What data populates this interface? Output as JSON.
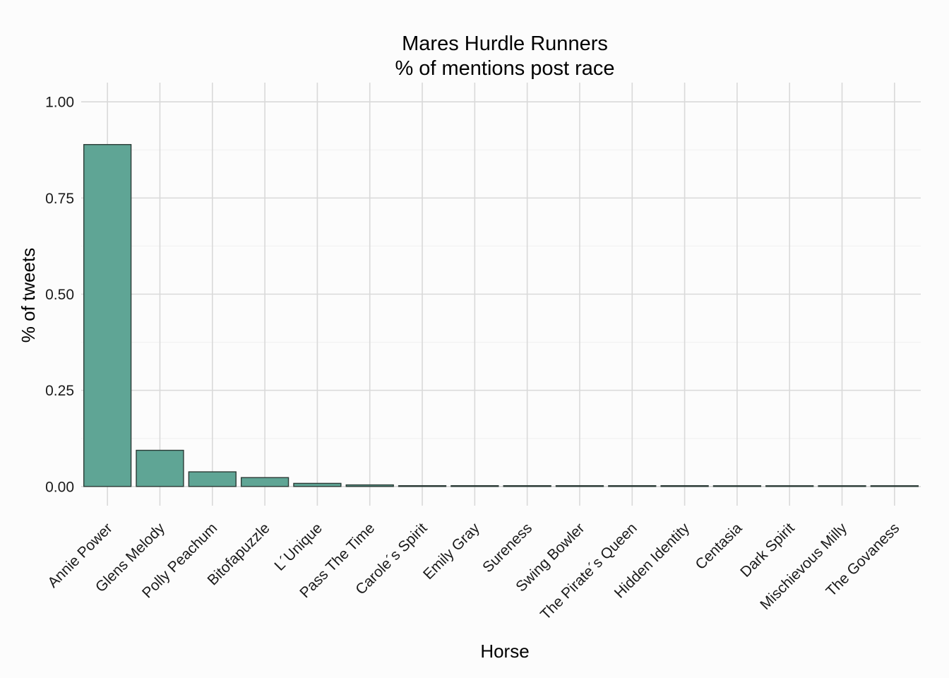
{
  "chart_data": {
    "type": "bar",
    "title": "Mares Hurdle Runners",
    "subtitle": "% of mentions post race",
    "xlabel": "Horse",
    "ylabel": "% of tweets",
    "categories": [
      "Annie Power",
      "Glens Melody",
      "Polly Peachum",
      "Bitofapuzzle",
      "L´Unique",
      "Pass The Time",
      "Carole´s Spirit",
      "Emily Gray",
      "Sureness",
      "Swing Bowler",
      "The Pirate´s Queen",
      "Hidden Identity",
      "Centasia",
      "Dark Spirit",
      "Mischievous Milly",
      "The Govaness"
    ],
    "values": [
      0.889,
      0.094,
      0.038,
      0.023,
      0.008,
      0.004,
      0.002,
      0.002,
      0.002,
      0.002,
      0.002,
      0.002,
      0.001,
      0.001,
      0.001,
      0.001
    ],
    "ylim": [
      -0.05,
      1.05
    ],
    "yticks": [
      0,
      0.25,
      0.5,
      0.75,
      1
    ],
    "ytick_labels": [
      "0.00",
      "0.25",
      "0.50",
      "0.75",
      "1.00"
    ],
    "grid": true,
    "legend": "none",
    "colors": {
      "bar_fill": "#5fa595",
      "bar_stroke": "#2b3b36",
      "grid_major": "#d9d9d9",
      "grid_minor": "#f0f0f0",
      "background": "#fcfcfc"
    }
  }
}
